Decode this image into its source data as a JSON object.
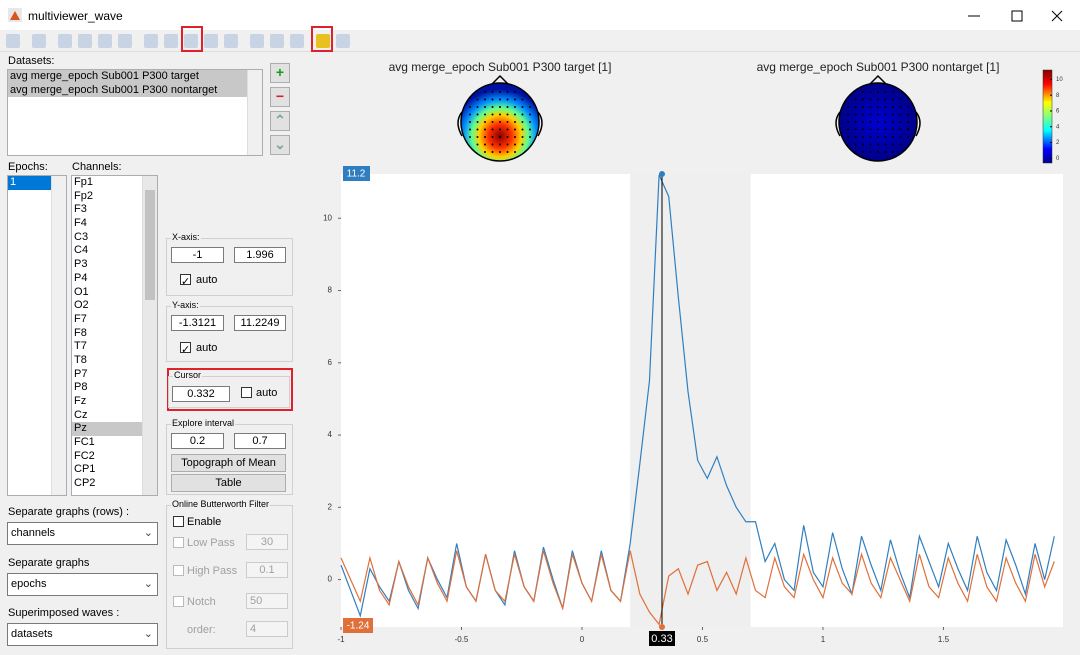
{
  "window_title": "multiviewer_wave",
  "datasets": {
    "label": "Datasets:",
    "items": [
      "avg merge_epoch Sub001 P300 target",
      "avg merge_epoch Sub001 P300 nontarget"
    ]
  },
  "epochs": {
    "label": "Epochs:",
    "items": [
      "1"
    ]
  },
  "channels": {
    "label": "Channels:",
    "items": [
      "Fp1",
      "Fp2",
      "F3",
      "F4",
      "C3",
      "C4",
      "P3",
      "P4",
      "O1",
      "O2",
      "F7",
      "F8",
      "T7",
      "T8",
      "P7",
      "P8",
      "Fz",
      "Cz",
      "Pz",
      "FC1",
      "FC2",
      "CP1",
      "CP2"
    ],
    "selected_index": 18
  },
  "xaxis_panel": {
    "label": "X-axis:",
    "auto": "auto"
  },
  "yaxis_panel": {
    "label": "Y-axis:",
    "auto": "auto"
  },
  "cursor_panel": {
    "label": "Cursor",
    "auto": "auto"
  },
  "explore_panel": {
    "label": "Explore interval",
    "buttons": [
      "Topograph of Mean",
      "Table"
    ]
  },
  "filter_panel": {
    "label": "Online Butterworth Filter",
    "enable": "Enable",
    "rows": [
      {
        "label": "Low Pass",
        "value": "30"
      },
      {
        "label": "High Pass",
        "value": "0.1"
      },
      {
        "label": "Notch",
        "value": "50"
      },
      {
        "label": "order:",
        "value": "4"
      }
    ]
  },
  "dropdowns": [
    {
      "label": "Separate graphs (rows) :",
      "value": "channels"
    },
    {
      "label": "Separate graphs",
      "value": "epochs"
    },
    {
      "label": "Superimposed waves :",
      "value": "datasets"
    }
  ],
  "chart_data": {
    "type": "line",
    "topo_titles": [
      "avg merge_epoch Sub001 P300 target [1]",
      "avg merge_epoch Sub001 P300 nontarget [1]"
    ],
    "colorbar_ticks": [
      0,
      2,
      4,
      6,
      8,
      10
    ],
    "colorbar_lim": [
      -0.6,
      11.2
    ],
    "x": [
      -1,
      -0.96,
      -0.92,
      -0.88,
      -0.84,
      -0.8,
      -0.76,
      -0.72,
      -0.68,
      -0.64,
      -0.6,
      -0.56,
      -0.52,
      -0.48,
      -0.44,
      -0.4,
      -0.36,
      -0.32,
      -0.28,
      -0.24,
      -0.2,
      -0.16,
      -0.12,
      -0.08,
      -0.04,
      0,
      0.04,
      0.08,
      0.12,
      0.16,
      0.2,
      0.24,
      0.28,
      0.32,
      0.36,
      0.4,
      0.44,
      0.48,
      0.52,
      0.56,
      0.6,
      0.64,
      0.68,
      0.72,
      0.76,
      0.8,
      0.84,
      0.88,
      0.92,
      0.96,
      1,
      1.04,
      1.08,
      1.12,
      1.16,
      1.2,
      1.24,
      1.28,
      1.32,
      1.36,
      1.4,
      1.44,
      1.48,
      1.52,
      1.56,
      1.6,
      1.64,
      1.68,
      1.72,
      1.76,
      1.8,
      1.84,
      1.88,
      1.92,
      1.96
    ],
    "series": [
      {
        "color": "#2f7fc0",
        "values": [
          0.4,
          -0.3,
          -1.0,
          0.3,
          -0.2,
          -0.6,
          0.5,
          -0.3,
          -0.8,
          0.6,
          0.0,
          -0.5,
          1.0,
          -0.2,
          -0.6,
          0.7,
          -0.3,
          -0.7,
          0.8,
          -0.2,
          -0.6,
          0.9,
          0.0,
          -0.8,
          0.8,
          -0.1,
          -0.6,
          0.8,
          -0.3,
          -0.6,
          1.0,
          3.2,
          5.5,
          11.2,
          10.6,
          7.8,
          5.2,
          3.3,
          2.8,
          3.4,
          2.6,
          2.0,
          1.6,
          1.6,
          0.5,
          1.0,
          0.0,
          -0.3,
          1.5,
          0.2,
          -0.2,
          1.3,
          0.3,
          -0.4,
          1.2,
          0.4,
          -0.3,
          1.1,
          0.2,
          -0.5,
          1.2,
          0.5,
          -0.2,
          1.0,
          0.3,
          -0.3,
          1.2,
          0.2,
          -0.3,
          1.1,
          0.4,
          -0.4,
          1.0,
          0.0,
          1.2
        ]
      },
      {
        "color": "#e0703a",
        "values": [
          0.6,
          0.0,
          -0.6,
          0.6,
          -0.3,
          -0.7,
          0.5,
          -0.2,
          -0.7,
          0.6,
          -0.1,
          -0.6,
          0.8,
          -0.2,
          -0.6,
          0.7,
          -0.3,
          -0.6,
          0.7,
          -0.2,
          -0.6,
          0.8,
          -0.1,
          -0.8,
          0.7,
          -0.1,
          -0.6,
          0.7,
          -0.3,
          -0.6,
          0.8,
          -0.4,
          -0.9,
          -1.24,
          0.1,
          0.3,
          -0.4,
          0.4,
          0.5,
          -0.3,
          0.2,
          -0.4,
          0.6,
          -0.3,
          -0.5,
          0.6,
          -0.2,
          -0.5,
          0.7,
          0.0,
          -0.5,
          0.6,
          -0.1,
          -0.4,
          0.7,
          -0.1,
          -0.5,
          0.6,
          0.0,
          -0.6,
          0.7,
          -0.2,
          -0.5,
          0.6,
          -0.1,
          -0.6,
          0.7,
          -0.2,
          -0.6,
          0.6,
          -0.1,
          -0.6,
          0.7,
          -0.2,
          0.5
        ]
      }
    ],
    "xlim": [
      -1,
      1.996
    ],
    "ylim": [
      -1.3121,
      11.2249
    ],
    "xticks": [
      -1,
      -0.5,
      0,
      0.5,
      1,
      1.5
    ],
    "yticks": [
      0,
      2,
      4,
      6,
      8,
      10
    ],
    "highlight": [
      0.2,
      0.7
    ],
    "cursor": 0.332,
    "cursor_labels": {
      "top": "11.2",
      "bottom": "-1.24",
      "x": "0.33"
    }
  }
}
